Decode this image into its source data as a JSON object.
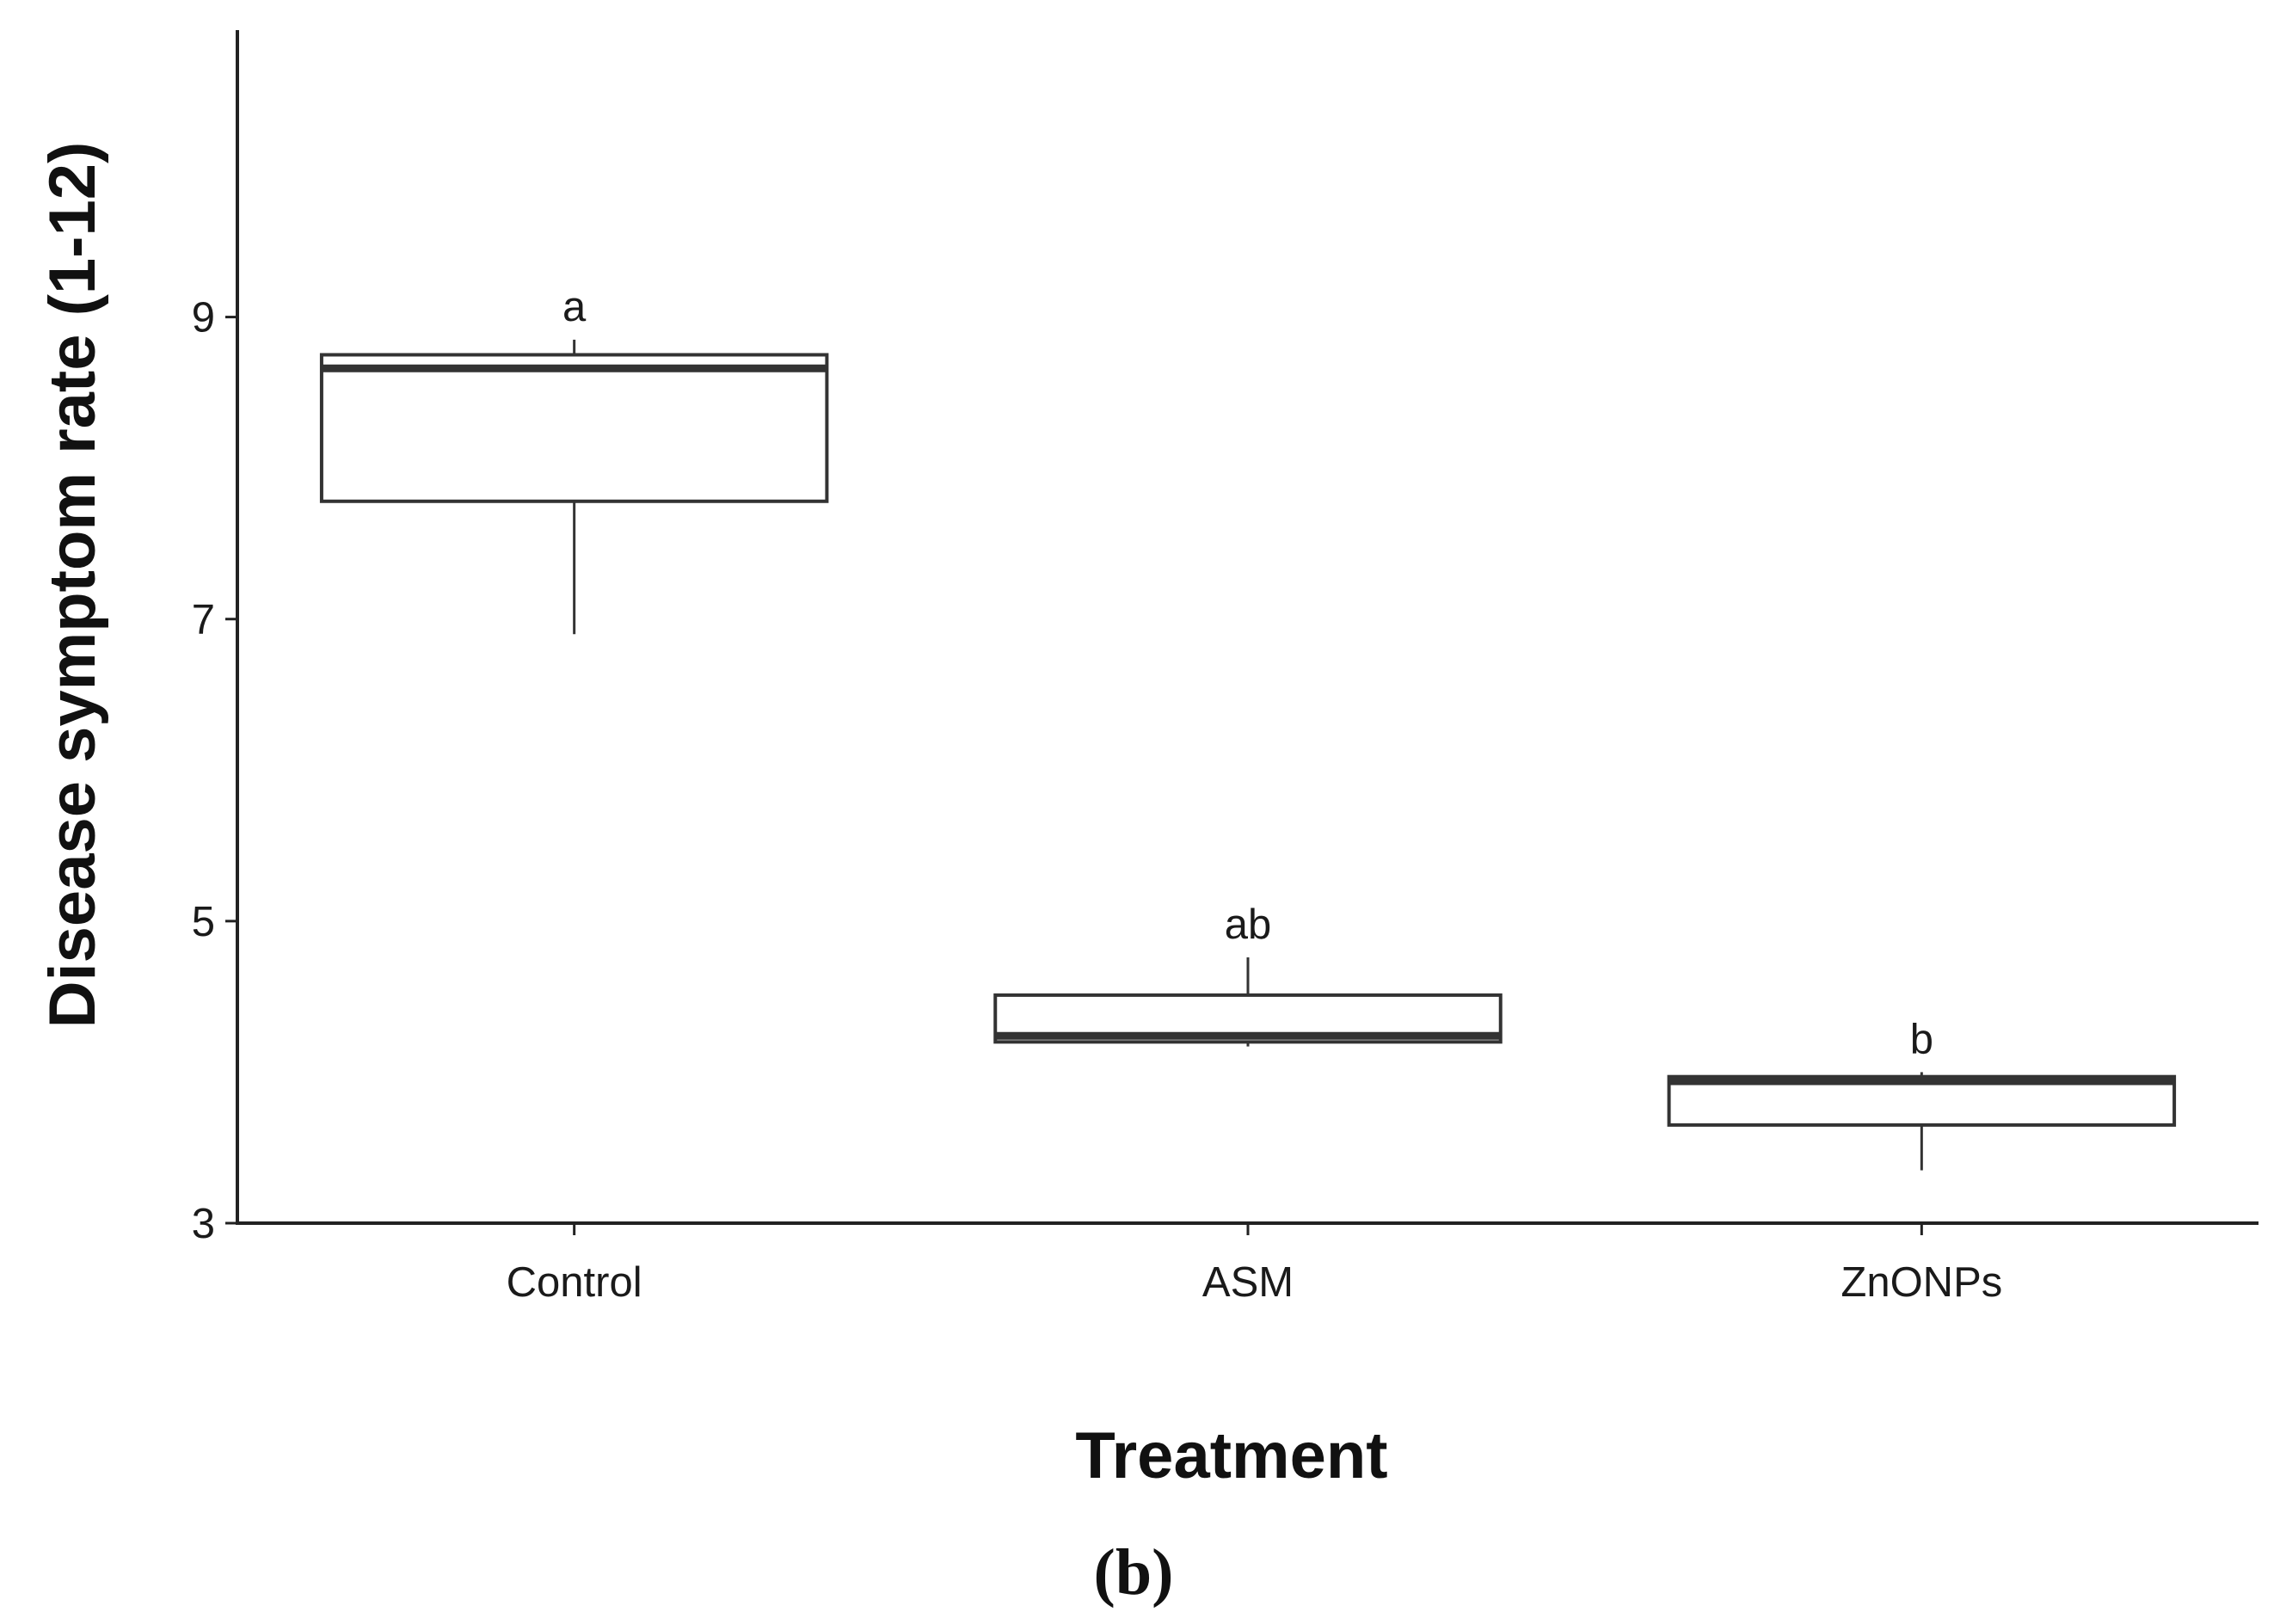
{
  "chart_data": {
    "type": "box",
    "xlabel": "Treatment",
    "ylabel": "Disease symptom rate (1-12)",
    "panel_label": "(b)",
    "ylim": [
      3,
      10.9
    ],
    "yticks": [
      "3",
      "5",
      "7",
      "9"
    ],
    "grid": false,
    "legend": "none",
    "categories": [
      "Control",
      "ASM",
      "ZnONPs"
    ],
    "boxes": [
      {
        "category": "Control",
        "whisker_low": 6.9,
        "q1": 7.78,
        "median": 8.66,
        "q3": 8.75,
        "whisker_high": 8.85,
        "letter": "a"
      },
      {
        "category": "ASM",
        "whisker_low": 4.17,
        "q1": 4.2,
        "median": 4.24,
        "q3": 4.51,
        "whisker_high": 4.76,
        "letter": "ab"
      },
      {
        "category": "ZnONPs",
        "whisker_low": 3.35,
        "q1": 3.65,
        "median": 3.94,
        "q3": 3.97,
        "whisker_high": 4.0,
        "letter": "b"
      }
    ],
    "colors": {
      "box_fill": "#ffffff",
      "line": "#333333",
      "median": "#333333"
    }
  }
}
